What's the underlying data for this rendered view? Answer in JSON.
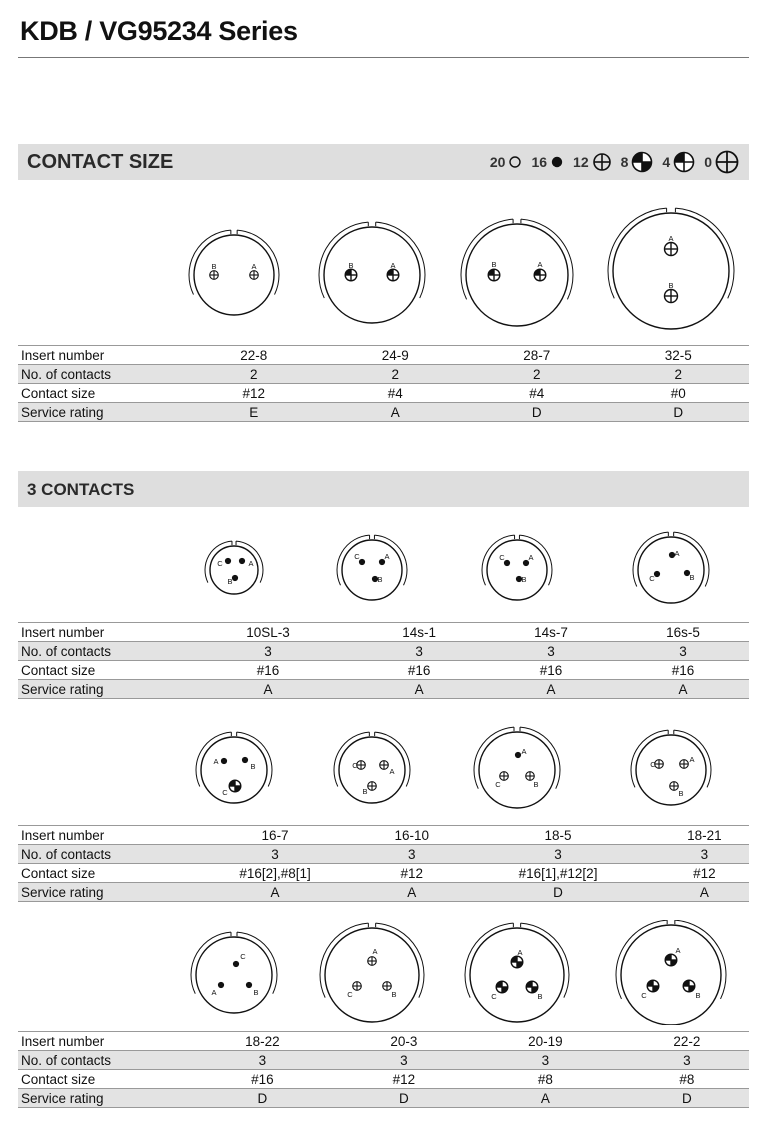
{
  "title": "KDB / VG95234 Series",
  "contact_size_section": {
    "heading": "CONTACT SIZE",
    "legend": [
      {
        "size": "20",
        "icon": "contact-20-open-circle-icon"
      },
      {
        "size": "16",
        "icon": "contact-16-solid-dot-icon"
      },
      {
        "size": "12",
        "icon": "contact-12-crosshair-icon"
      },
      {
        "size": "8",
        "icon": "contact-8-half-fill-icon"
      },
      {
        "size": "4",
        "icon": "contact-4-quarter-fill-icon"
      },
      {
        "size": "0",
        "icon": "contact-0-large-crosshair-icon"
      }
    ]
  },
  "three_contacts_section": {
    "heading": "3 CONTACTS"
  },
  "row_labels": {
    "insert_number": "Insert number",
    "no_of_contacts": "No. of contacts",
    "contact_size": "Contact size",
    "service_rating": "Service rating"
  },
  "tables": [
    {
      "insert": [
        "22-8",
        "24-9",
        "28-7",
        "32-5"
      ],
      "contacts": [
        "2",
        "2",
        "2",
        "2"
      ],
      "size": [
        "#12",
        "#4",
        "#4",
        "#0"
      ],
      "rating": [
        "E",
        "A",
        "D",
        "D"
      ]
    },
    {
      "insert": [
        "10SL-3",
        "14s-1",
        "14s-7",
        "16s-5"
      ],
      "contacts": [
        "3",
        "3",
        "3",
        "3"
      ],
      "size": [
        "#16",
        "#16",
        "#16",
        "#16"
      ],
      "rating": [
        "A",
        "A",
        "A",
        "A"
      ]
    },
    {
      "insert": [
        "16-7",
        "16-10",
        "18-5",
        "18-21"
      ],
      "contacts": [
        "3",
        "3",
        "3",
        "3"
      ],
      "size": [
        "#16[2],#8[1]",
        "#12",
        "#16[1],#12[2]",
        "#12"
      ],
      "rating": [
        "A",
        "A",
        "D",
        "A"
      ]
    },
    {
      "insert": [
        "18-22",
        "20-3",
        "20-19",
        "22-2"
      ],
      "contacts": [
        "3",
        "3",
        "3",
        "3"
      ],
      "size": [
        "#16",
        "#12",
        "#8",
        "#8"
      ],
      "rating": [
        "D",
        "D",
        "A",
        "D"
      ]
    }
  ],
  "drawings": [
    [
      {
        "contacts": [
          {
            "l": "B",
            "t": "c12"
          },
          {
            "l": "A",
            "t": "c12"
          }
        ]
      },
      {
        "contacts": [
          {
            "l": "B",
            "t": "c4"
          },
          {
            "l": "A",
            "t": "c4"
          }
        ]
      },
      {
        "contacts": [
          {
            "l": "B",
            "t": "c4"
          },
          {
            "l": "A",
            "t": "c4"
          }
        ]
      },
      {
        "contacts": [
          {
            "l": "A",
            "t": "c0"
          },
          {
            "l": "B",
            "t": "c0"
          }
        ]
      }
    ],
    [
      {
        "contacts": [
          {
            "l": "C",
            "t": "c16"
          },
          {
            "l": "A",
            "t": "c16"
          },
          {
            "l": "B",
            "t": "c16"
          }
        ]
      },
      {
        "contacts": [
          {
            "l": "C",
            "t": "c16"
          },
          {
            "l": "A",
            "t": "c16"
          },
          {
            "l": "B",
            "t": "c16"
          }
        ]
      },
      {
        "contacts": [
          {
            "l": "C",
            "t": "c16"
          },
          {
            "l": "A",
            "t": "c16"
          },
          {
            "l": "B",
            "t": "c16"
          }
        ]
      },
      {
        "contacts": [
          {
            "l": "A",
            "t": "c16"
          },
          {
            "l": "C",
            "t": "c16"
          },
          {
            "l": "B",
            "t": "c16"
          }
        ]
      }
    ],
    [
      {
        "contacts": [
          {
            "l": "A",
            "t": "c16"
          },
          {
            "l": "B",
            "t": "c16"
          },
          {
            "l": "C",
            "t": "c8"
          }
        ]
      },
      {
        "contacts": [
          {
            "l": "C",
            "t": "c12"
          },
          {
            "l": "A",
            "t": "c12"
          },
          {
            "l": "B",
            "t": "c12"
          }
        ]
      },
      {
        "contacts": [
          {
            "l": "A",
            "t": "c16"
          },
          {
            "l": "C",
            "t": "c12"
          },
          {
            "l": "B",
            "t": "c12"
          }
        ]
      },
      {
        "contacts": [
          {
            "l": "C",
            "t": "c12"
          },
          {
            "l": "A",
            "t": "c12"
          },
          {
            "l": "B",
            "t": "c12"
          }
        ]
      }
    ],
    [
      {
        "contacts": [
          {
            "l": "C",
            "t": "c16"
          },
          {
            "l": "A",
            "t": "c16"
          },
          {
            "l": "B",
            "t": "c16"
          }
        ]
      },
      {
        "contacts": [
          {
            "l": "A",
            "t": "c12"
          },
          {
            "l": "C",
            "t": "c12"
          },
          {
            "l": "B",
            "t": "c12"
          }
        ]
      },
      {
        "contacts": [
          {
            "l": "A",
            "t": "c8"
          },
          {
            "l": "C",
            "t": "c8"
          },
          {
            "l": "B",
            "t": "c8"
          }
        ]
      },
      {
        "contacts": [
          {
            "l": "A",
            "t": "c8"
          },
          {
            "l": "C",
            "t": "c8"
          },
          {
            "l": "B",
            "t": "c8"
          }
        ]
      }
    ]
  ]
}
